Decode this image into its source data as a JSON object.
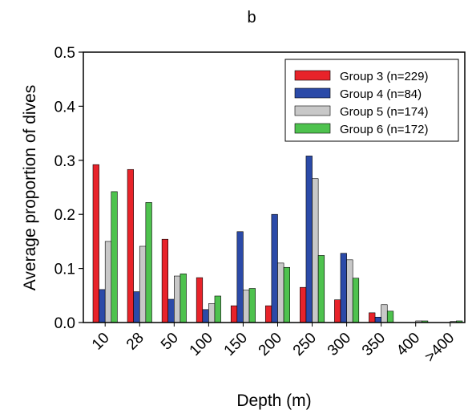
{
  "chart_data": {
    "type": "bar",
    "title": "b",
    "xlabel": "Depth (m)",
    "ylabel": "Average proportion of dives",
    "ylim": [
      0,
      0.5
    ],
    "yticks": [
      "0.0",
      "0.1",
      "0.2",
      "0.3",
      "0.4",
      "0.5"
    ],
    "categories": [
      "10",
      "28",
      "50",
      "100",
      "150",
      "200",
      "250",
      "300",
      "350",
      "400",
      ">400"
    ],
    "legend_position": "top-right",
    "grid": false,
    "series": [
      {
        "name": "Group 3 (n=229)",
        "color": "#e8232a",
        "values": [
          0.292,
          0.283,
          0.154,
          0.083,
          0.031,
          0.031,
          0.065,
          0.042,
          0.018,
          0.0,
          0.0
        ]
      },
      {
        "name": "Group 4 (n=84)",
        "color": "#2b4aa8",
        "values": [
          0.061,
          0.057,
          0.043,
          0.024,
          0.168,
          0.2,
          0.308,
          0.128,
          0.01,
          0.0,
          0.0
        ]
      },
      {
        "name": "Group 5 (n=174)",
        "color": "#c8c8c8",
        "values": [
          0.15,
          0.141,
          0.086,
          0.035,
          0.06,
          0.11,
          0.266,
          0.116,
          0.033,
          0.003,
          0.002
        ]
      },
      {
        "name": "Group 6 (n=172)",
        "color": "#4ec24e",
        "values": [
          0.242,
          0.222,
          0.09,
          0.049,
          0.063,
          0.102,
          0.124,
          0.082,
          0.021,
          0.003,
          0.003
        ]
      }
    ]
  }
}
